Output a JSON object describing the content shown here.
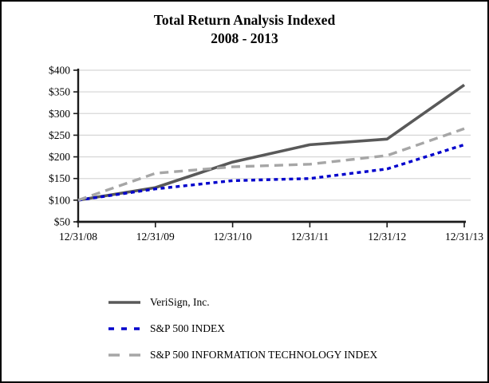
{
  "page": {
    "title_line1": "Total Return Analysis Indexed",
    "title_line2": "2008 - 2013"
  },
  "chart_data": {
    "type": "line",
    "title": "Total Return Analysis Indexed 2008 - 2013",
    "title_lines": [
      "Total Return Analysis Indexed",
      "2008 - 2013"
    ],
    "categories": [
      "12/31/08",
      "12/31/09",
      "12/31/10",
      "12/31/11",
      "12/31/12",
      "12/31/13"
    ],
    "series": [
      {
        "name": "VeriSign, Inc.",
        "values": [
          100,
          129,
          188,
          228,
          241,
          366
        ],
        "color": "#595959",
        "dash": "solid",
        "stroke_width": 3.6,
        "legend_dash": "solid"
      },
      {
        "name": "S&P 500 INDEX",
        "values": [
          100,
          126,
          145,
          150,
          172,
          228
        ],
        "color": "#0000cc",
        "dash": "5 4.5",
        "stroke_width": 3.4,
        "legend_dash": "7 9"
      },
      {
        "name": "S&P 500 INFORMATION TECHNOLOGY INDEX",
        "values": [
          100,
          162,
          177,
          183,
          203,
          265
        ],
        "color": "#a6a6a6",
        "dash": "11 7",
        "stroke_width": 3.4,
        "legend_dash": "14 12"
      }
    ],
    "ylim": [
      50,
      400
    ],
    "ytick_step": 50,
    "ytick_labels": [
      "$50",
      "$100",
      "$150",
      "$200",
      "$250",
      "$300",
      "$350",
      "$400"
    ],
    "xlabel": "",
    "ylabel": "",
    "grid": "horizontal",
    "legend_position": "bottom-left",
    "axis_color": "#1a1a1a",
    "grid_color": "#d8d8d8",
    "text_color": "#000000"
  }
}
